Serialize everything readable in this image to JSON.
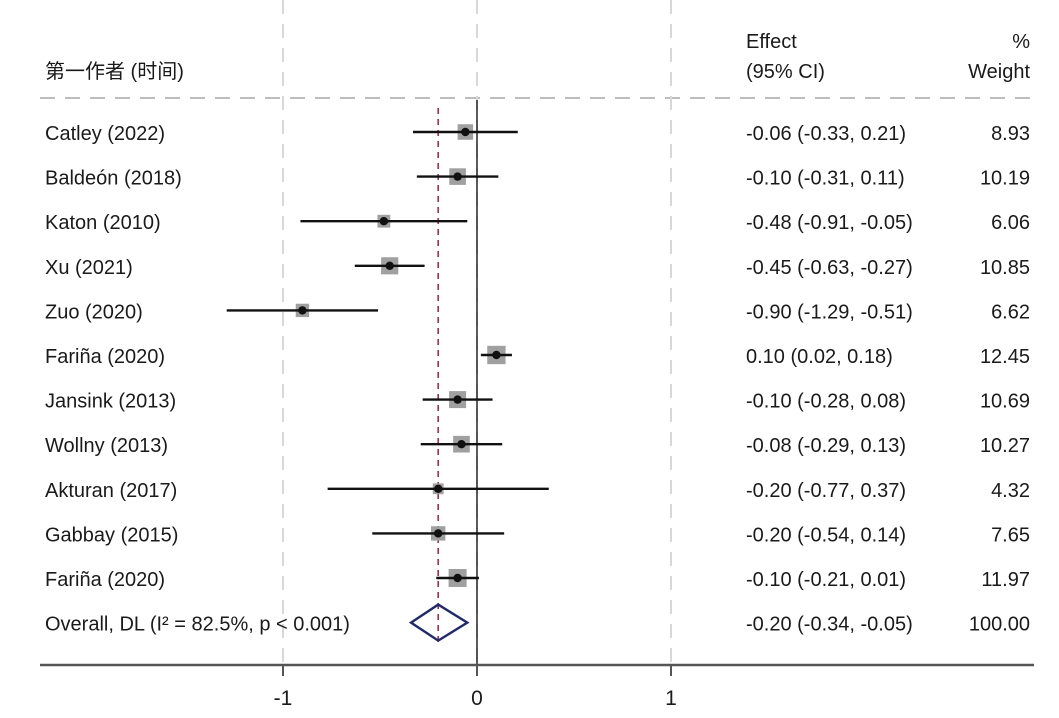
{
  "chart_data": {
    "type": "forest",
    "header": {
      "study_col": "第一作者 (时间)",
      "effect_col_line1": "Effect",
      "effect_col_line2": "(95% CI)",
      "weight_col_line1": "%",
      "weight_col_line2": "Weight"
    },
    "x_axis": {
      "range": [
        -2,
        2.0
      ],
      "ticks": [
        -1,
        0,
        1
      ],
      "tick_labels": [
        "-1",
        "0",
        "1"
      ],
      "null_line": 0,
      "gridlines_dashed": [
        -1,
        0,
        1
      ]
    },
    "studies": [
      {
        "label": "Catley (2022)",
        "effect": -0.06,
        "lower": -0.33,
        "upper": 0.21,
        "effect_text": "-0.06 (-0.33, 0.21)",
        "weight": 8.93,
        "weight_text": "8.93"
      },
      {
        "label": "Baldeón (2018)",
        "effect": -0.1,
        "lower": -0.31,
        "upper": 0.11,
        "effect_text": "-0.10 (-0.31, 0.11)",
        "weight": 10.19,
        "weight_text": "10.19"
      },
      {
        "label": "Katon (2010)",
        "effect": -0.48,
        "lower": -0.91,
        "upper": -0.05,
        "effect_text": "-0.48 (-0.91, -0.05)",
        "weight": 6.06,
        "weight_text": "6.06"
      },
      {
        "label": "Xu (2021)",
        "effect": -0.45,
        "lower": -0.63,
        "upper": -0.27,
        "effect_text": "-0.45 (-0.63, -0.27)",
        "weight": 10.85,
        "weight_text": "10.85"
      },
      {
        "label": "Zuo (2020)",
        "effect": -0.9,
        "lower": -1.29,
        "upper": -0.51,
        "effect_text": "-0.90 (-1.29, -0.51)",
        "weight": 6.62,
        "weight_text": "6.62"
      },
      {
        "label": "Fariña (2020)",
        "effect": 0.1,
        "lower": 0.02,
        "upper": 0.18,
        "effect_text": "0.10 (0.02, 0.18)",
        "weight": 12.45,
        "weight_text": "12.45"
      },
      {
        "label": "Jansink (2013)",
        "effect": -0.1,
        "lower": -0.28,
        "upper": 0.08,
        "effect_text": "-0.10 (-0.28, 0.08)",
        "weight": 10.69,
        "weight_text": "10.69"
      },
      {
        "label": "Wollny (2013)",
        "effect": -0.08,
        "lower": -0.29,
        "upper": 0.13,
        "effect_text": "-0.08 (-0.29, 0.13)",
        "weight": 10.27,
        "weight_text": "10.27"
      },
      {
        "label": "Akturan (2017)",
        "effect": -0.2,
        "lower": -0.77,
        "upper": 0.37,
        "effect_text": "-0.20 (-0.77, 0.37)",
        "weight": 4.32,
        "weight_text": "4.32"
      },
      {
        "label": "Gabbay (2015)",
        "effect": -0.2,
        "lower": -0.54,
        "upper": 0.14,
        "effect_text": "-0.20 (-0.54, 0.14)",
        "weight": 7.65,
        "weight_text": "7.65"
      },
      {
        "label": "Fariña (2020)",
        "effect": -0.1,
        "lower": -0.21,
        "upper": 0.01,
        "effect_text": "-0.10 (-0.21, 0.01)",
        "weight": 11.97,
        "weight_text": "11.97"
      }
    ],
    "overall": {
      "label": "Overall, DL (I² = 82.5%, p < 0.001)",
      "effect": -0.2,
      "lower": -0.34,
      "upper": -0.05,
      "effect_text": "-0.20 (-0.34, -0.05)",
      "weight": 100.0,
      "weight_text": "100.00"
    },
    "colors": {
      "ci_line": "#111111",
      "box": "#a0a0a0",
      "point": "#111111",
      "diamond": "#1f2a6b",
      "overall_line": "#a0304a",
      "grid": "#d8d8d8",
      "axis": "#555555"
    }
  }
}
